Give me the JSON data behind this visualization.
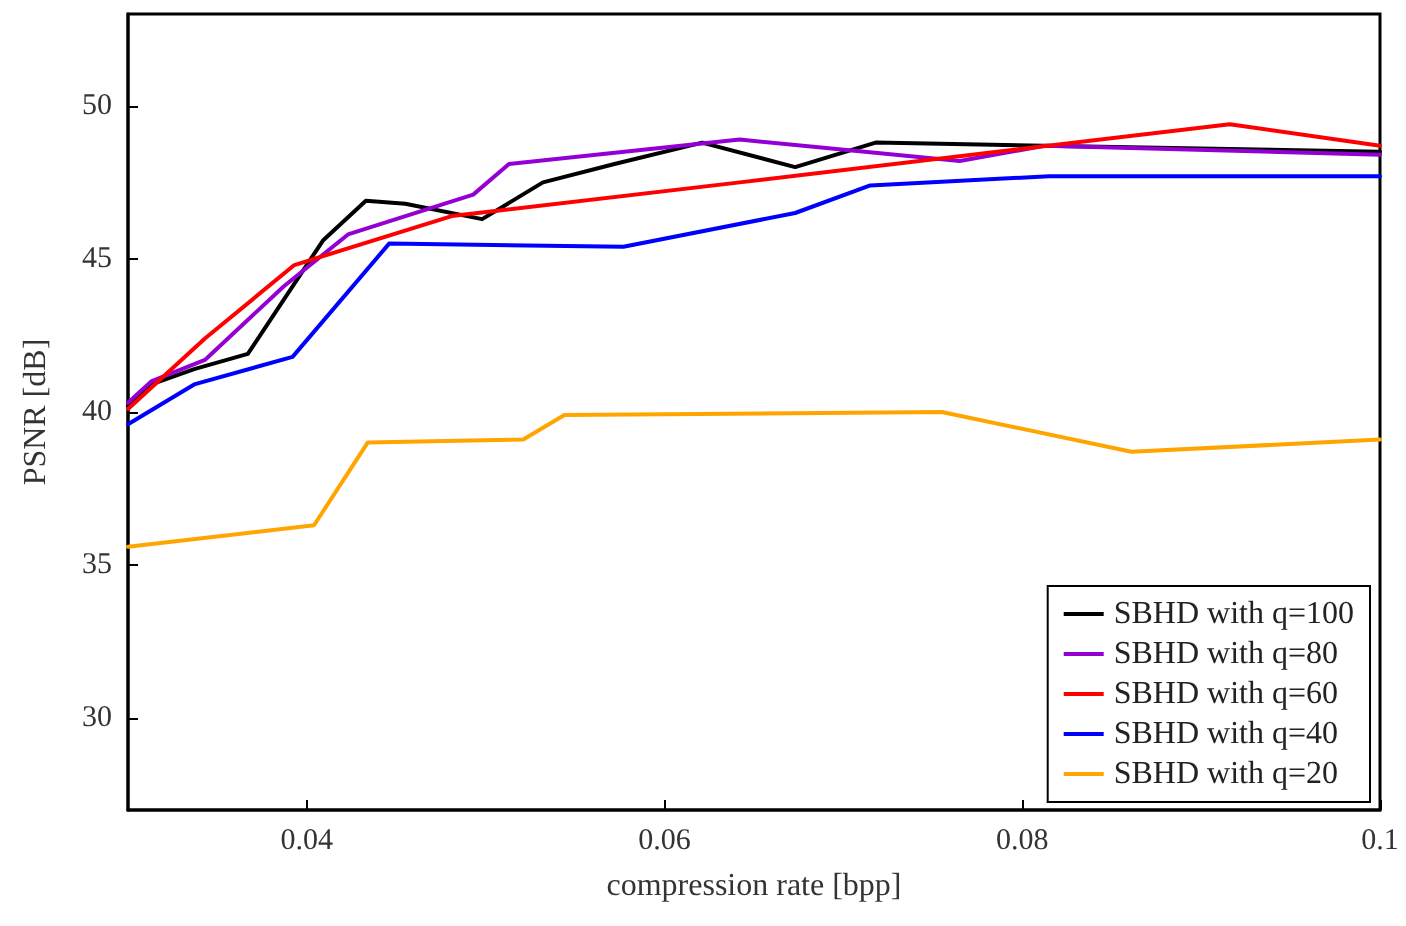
{
  "chart_data": {
    "type": "line",
    "xlabel": "compression rate [bpp]",
    "ylabel": "PSNR [dB]",
    "xlim": [
      0.03,
      0.1
    ],
    "xticks": [
      0.04,
      0.06,
      0.08,
      0.1
    ],
    "ylim": [
      27,
      53
    ],
    "yticks": [
      30,
      35,
      40,
      45,
      50
    ],
    "grid": false,
    "legend": "bottom right",
    "marker": "none",
    "line_style": "solid",
    "series": [
      {
        "name": "SBHD with q=100",
        "color": "#000000",
        "x": [
          0.03,
          0.0313,
          0.0337,
          0.0367,
          0.0409,
          0.0433,
          0.0455,
          0.0498,
          0.0532,
          0.0572,
          0.0621,
          0.0673,
          0.0718,
          0.1
        ],
        "values": [
          40.2,
          40.9,
          41.4,
          41.9,
          45.6,
          46.9,
          46.8,
          46.3,
          47.5,
          48.1,
          48.8,
          48.0,
          48.8,
          48.5
        ]
      },
      {
        "name": "SBHD with q=80",
        "color": "#9400d3",
        "x": [
          0.03,
          0.0313,
          0.0343,
          0.0387,
          0.0423,
          0.0493,
          0.0513,
          0.0642,
          0.0765,
          0.0813,
          0.1
        ],
        "values": [
          40.3,
          41.0,
          41.7,
          44.1,
          45.8,
          47.1,
          48.1,
          48.9,
          48.2,
          48.7,
          48.4
        ]
      },
      {
        "name": "SBHD with q=60",
        "color": "#ff0000",
        "x": [
          0.03,
          0.0343,
          0.0393,
          0.0481,
          0.0642,
          0.0916,
          0.1
        ],
        "values": [
          40.1,
          42.4,
          44.8,
          46.4,
          47.5,
          49.4,
          48.7
        ]
      },
      {
        "name": "SBHD with q=40",
        "color": "#0000ff",
        "x": [
          0.03,
          0.0337,
          0.0392,
          0.0446,
          0.0577,
          0.0673,
          0.0715,
          0.0815,
          0.1
        ],
        "values": [
          39.6,
          40.9,
          41.8,
          45.5,
          45.4,
          46.5,
          47.4,
          47.7,
          47.7
        ]
      },
      {
        "name": "SBHD with q=20",
        "color": "#ffa500",
        "x": [
          0.03,
          0.0404,
          0.0434,
          0.0521,
          0.0544,
          0.0755,
          0.0861,
          0.1
        ],
        "values": [
          35.6,
          36.3,
          39.0,
          39.1,
          39.9,
          40.0,
          38.7,
          39.1
        ]
      }
    ]
  }
}
